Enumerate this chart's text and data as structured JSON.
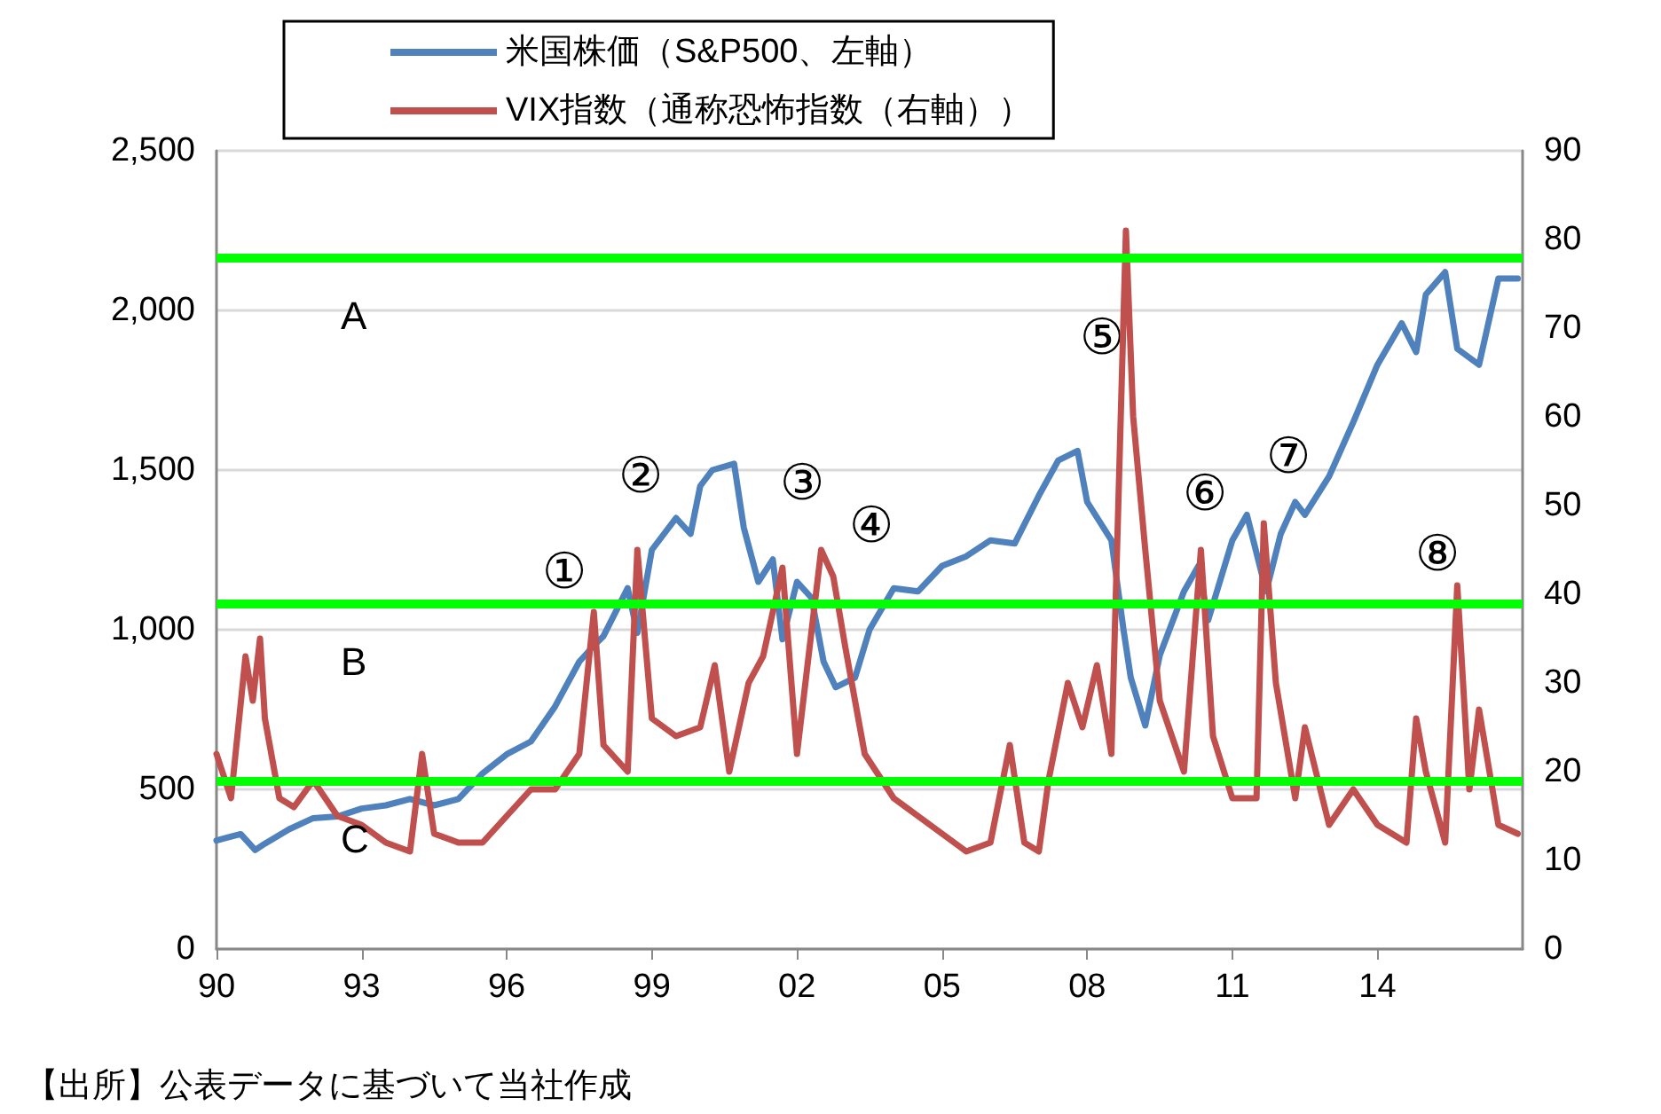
{
  "chart_data": {
    "type": "line",
    "x": [
      1990.0,
      1990.5,
      1990.8,
      1991.0,
      1991.5,
      1992.0,
      1992.5,
      1993.0,
      1993.5,
      1994.0,
      1994.5,
      1995.0,
      1995.5,
      1996.0,
      1996.5,
      1997.0,
      1997.5,
      1997.8,
      1998.0,
      1998.5,
      1998.7,
      1999.0,
      1999.5,
      1999.8,
      2000.0,
      2000.25,
      2000.7,
      2000.9,
      2001.2,
      2001.5,
      2001.7,
      2002.0,
      2002.3,
      2002.55,
      2002.8,
      2003.2,
      2003.5,
      2004.0,
      2004.5,
      2005.0,
      2005.5,
      2006.0,
      2006.5,
      2007.0,
      2007.4,
      2007.8,
      2008.0,
      2008.5,
      2008.75,
      2008.9,
      2009.2,
      2009.5,
      2010.0,
      2010.3,
      2010.5,
      2011.0,
      2011.3,
      2011.7,
      2012.0,
      2012.3,
      2012.5,
      2013.0,
      2013.5,
      2014.0,
      2014.5,
      2014.8,
      2015.0,
      2015.4,
      2015.65,
      2016.1,
      2016.5,
      2016.9
    ],
    "series": [
      {
        "name": "米国株価（S&P500、左軸）",
        "color": "#4f81bd",
        "values": [
          340,
          360,
          310,
          330,
          375,
          410,
          415,
          440,
          450,
          470,
          450,
          470,
          550,
          610,
          650,
          760,
          900,
          950,
          980,
          1130,
          990,
          1250,
          1350,
          1300,
          1450,
          1500,
          1520,
          1320,
          1150,
          1220,
          970,
          1150,
          1100,
          900,
          820,
          850,
          1000,
          1130,
          1120,
          1200,
          1230,
          1280,
          1270,
          1420,
          1530,
          1560,
          1400,
          1280,
          1000,
          850,
          700,
          920,
          1120,
          1200,
          1030,
          1280,
          1360,
          1120,
          1300,
          1400,
          1360,
          1480,
          1650,
          1830,
          1960,
          1870,
          2050,
          2120,
          1880,
          1830,
          2100,
          2100
        ]
      },
      {
        "name": "VIX指数（通称恐怖指数（右軸））",
        "color": "#c0504d",
        "axis": "y2",
        "x": [
          1990.0,
          1990.3,
          1990.6,
          1990.75,
          1990.9,
          1991.0,
          1991.3,
          1991.6,
          1992.0,
          1992.5,
          1993.0,
          1993.5,
          1994.0,
          1994.25,
          1994.5,
          1995.0,
          1995.5,
          1996.0,
          1996.5,
          1997.0,
          1997.5,
          1997.8,
          1998.0,
          1998.5,
          1998.7,
          1999.0,
          1999.5,
          2000.0,
          2000.3,
          2000.6,
          2001.0,
          2001.3,
          2001.7,
          2002.0,
          2002.5,
          2002.75,
          2003.0,
          2003.4,
          2004.0,
          2004.5,
          2005.0,
          2005.5,
          2006.0,
          2006.4,
          2006.7,
          2007.0,
          2007.2,
          2007.6,
          2007.9,
          2008.2,
          2008.5,
          2008.8,
          2008.95,
          2009.2,
          2009.5,
          2010.0,
          2010.35,
          2010.6,
          2011.0,
          2011.5,
          2011.65,
          2011.9,
          2012.3,
          2012.5,
          2013.0,
          2013.5,
          2014.0,
          2014.6,
          2014.8,
          2015.0,
          2015.4,
          2015.65,
          2015.9,
          2016.1,
          2016.5,
          2016.9
        ],
        "values": [
          22,
          17,
          33,
          28,
          35,
          26,
          17,
          16,
          19,
          15,
          14,
          12,
          11,
          22,
          13,
          12,
          12,
          15,
          18,
          18,
          22,
          38,
          23,
          20,
          45,
          26,
          24,
          25,
          32,
          20,
          30,
          33,
          43,
          22,
          45,
          42,
          34,
          22,
          17,
          15,
          13,
          11,
          12,
          23,
          12,
          11,
          19,
          30,
          25,
          32,
          22,
          81,
          60,
          45,
          28,
          20,
          45,
          24,
          17,
          17,
          48,
          30,
          17,
          25,
          14,
          18,
          14,
          12,
          26,
          20,
          12,
          41,
          18,
          27,
          14,
          13
        ]
      }
    ],
    "xlim": [
      1990,
      2017
    ],
    "xticks": [
      {
        "value": 1990,
        "label": "90"
      },
      {
        "value": 1993,
        "label": "93"
      },
      {
        "value": 1996,
        "label": "96"
      },
      {
        "value": 1999,
        "label": "99"
      },
      {
        "value": 2002,
        "label": "02"
      },
      {
        "value": 2005,
        "label": "05"
      },
      {
        "value": 2008,
        "label": "08"
      },
      {
        "value": 2011,
        "label": "11"
      },
      {
        "value": 2014,
        "label": "14"
      }
    ],
    "ylim": [
      0,
      2500
    ],
    "yticks": [
      0,
      500,
      {
        "value": 1000,
        "label": "1,000"
      },
      {
        "value": 1500,
        "label": "1,500"
      },
      {
        "value": 2000,
        "label": "2,000"
      },
      {
        "value": 2500,
        "label": "2,500"
      }
    ],
    "y2lim": [
      0,
      90
    ],
    "y2ticks": [
      0,
      10,
      20,
      30,
      40,
      50,
      60,
      70,
      80,
      90
    ],
    "ref_lines": [
      {
        "axis": "y2",
        "value": 78,
        "label": "A",
        "color": "#00ff00"
      },
      {
        "axis": "y2",
        "value": 39,
        "label": "B",
        "color": "#00ff00"
      },
      {
        "axis": "y2",
        "value": 19,
        "label": "C",
        "color": "#00ff00"
      }
    ],
    "annotations": [
      "①",
      "②",
      "③",
      "④",
      "⑤",
      "⑥",
      "⑦",
      "⑧",
      "【出所】公表データに基づいて当社作成"
    ],
    "grid": "y",
    "legend": "top",
    "marker": "none"
  }
}
